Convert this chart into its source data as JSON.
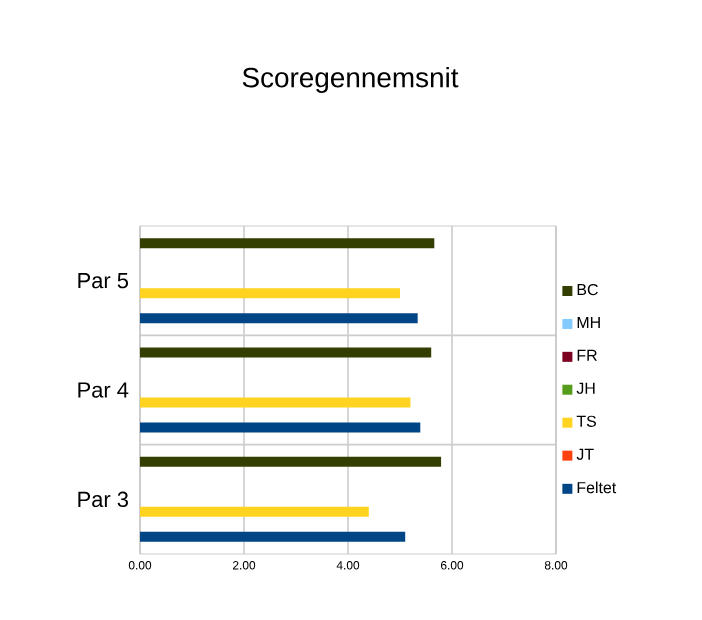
{
  "chart_data": {
    "type": "bar",
    "orientation": "horizontal",
    "title": "Scoregennemsnit",
    "categories": [
      "Par 5",
      "Par 4",
      "Par 3"
    ],
    "series": [
      {
        "name": "BC",
        "color": "#333f00",
        "values": [
          5.66,
          5.6,
          5.79
        ]
      },
      {
        "name": "MH",
        "color": "#83caff",
        "values": [
          null,
          null,
          null
        ]
      },
      {
        "name": "FR",
        "color": "#7e0021",
        "values": [
          null,
          null,
          null
        ]
      },
      {
        "name": "JH",
        "color": "#579d1c",
        "values": [
          null,
          null,
          null
        ]
      },
      {
        "name": "TS",
        "color": "#ffd320",
        "values": [
          5.0,
          5.2,
          4.4
        ]
      },
      {
        "name": "JT",
        "color": "#ff420e",
        "values": [
          null,
          null,
          null
        ]
      },
      {
        "name": "Feltet",
        "color": "#004586",
        "values": [
          5.34,
          5.39,
          5.1
        ]
      }
    ],
    "xlim": [
      0,
      8
    ],
    "xticks": [
      {
        "value": 0,
        "label": "0.00"
      },
      {
        "value": 2,
        "label": "2.00"
      },
      {
        "value": 4,
        "label": "4.00"
      },
      {
        "value": 6,
        "label": "6.00"
      },
      {
        "value": 8,
        "label": "8.00"
      }
    ],
    "grid": true,
    "legend": "right"
  }
}
